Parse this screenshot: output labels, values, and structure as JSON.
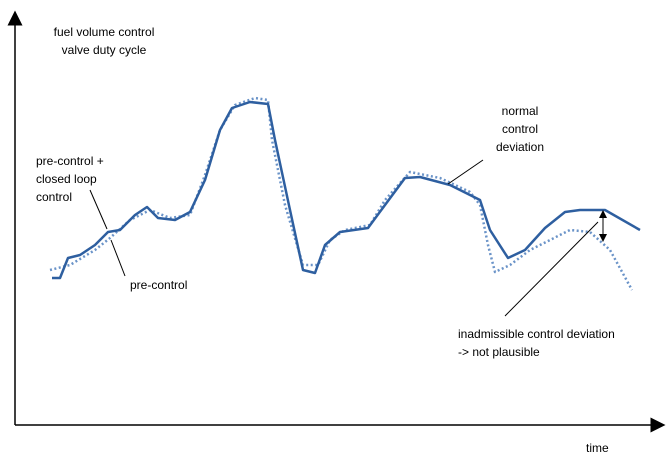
{
  "axes": {
    "y_label": [
      "fuel volume control",
      "valve duty cycle"
    ],
    "x_label": "time"
  },
  "annotations": {
    "pre_control_closed_loop": [
      "pre-control +",
      "closed loop",
      "control"
    ],
    "pre_control": "pre-control",
    "normal_deviation": [
      "normal",
      "control",
      "deviation"
    ],
    "inadmissible_deviation": [
      "inadmissible control deviation",
      "-> not plausible"
    ]
  }
}
